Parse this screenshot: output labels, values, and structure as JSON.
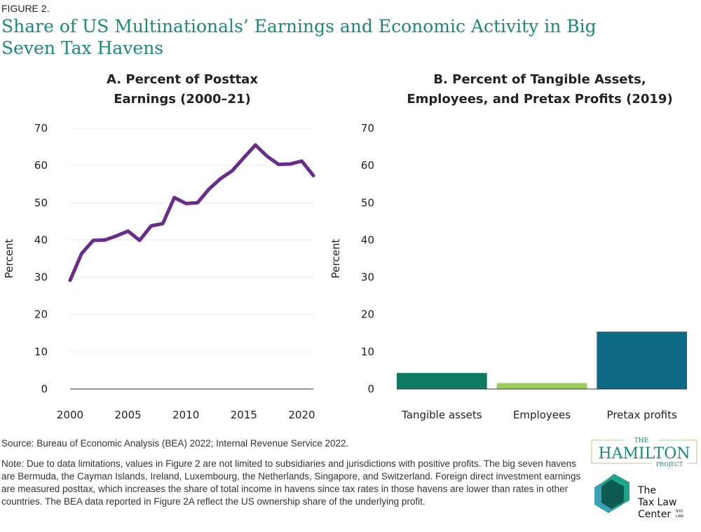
{
  "figure_label": "FIGURE 2.",
  "title": "Share of US Multinationals’ Earnings and Economic Activity in Big Seven Tax Havens",
  "source": "Source: Bureau of Economic Analysis (BEA) 2022; Internal Revenue Service 2022.",
  "note": "Note: Due to data limitations, values in Figure 2 are not limited to subsidiaries and jurisdictions with positive profits. The big seven havens are Bermuda, the Cayman Islands, Ireland, Luxembourg, the Netherlands, Singapore, and Switzerland. Foreign direct investment earnings are measured posttax, which increases the share of total income in havens since tax rates in those havens are lower than rates in other countries. The BEA data reported in Figure 2A reflect the US ownership share of the underlying profit.",
  "logos": {
    "hamilton": "THE HAMILTON PROJECT",
    "taxlaw": "The Tax Law Center NYU LAW"
  },
  "chart_data": [
    {
      "type": "line",
      "title": "A. Percent of Posttax Earnings (2000–21)",
      "ylabel": "Percent",
      "ylim": [
        0,
        70
      ],
      "yticks": [
        0,
        10,
        20,
        30,
        40,
        50,
        60,
        70
      ],
      "xticks": [
        2000,
        2005,
        2010,
        2015,
        2020
      ],
      "grid": true,
      "color": "#6a2c8a",
      "x": [
        2000,
        2001,
        2002,
        2003,
        2004,
        2005,
        2006,
        2007,
        2008,
        2009,
        2010,
        2011,
        2012,
        2013,
        2014,
        2015,
        2016,
        2017,
        2018,
        2019,
        2020,
        2021
      ],
      "values": [
        29.2,
        36.4,
        39.9,
        40.0,
        41.1,
        42.4,
        39.9,
        43.8,
        44.4,
        51.4,
        49.8,
        50.0,
        53.7,
        56.5,
        58.6,
        62.1,
        65.5,
        62.5,
        60.3,
        60.4,
        61.2,
        57.3
      ]
    },
    {
      "type": "bar",
      "title": "B. Percent of Tangible Assets, Employees, and Pretax Profits (2019)",
      "ylabel": "Percent",
      "ylim": [
        0,
        70
      ],
      "yticks": [
        0,
        10,
        20,
        30,
        40,
        50,
        60,
        70
      ],
      "grid": false,
      "categories": [
        "Tangible assets",
        "Employees",
        "Pretax profits"
      ],
      "values": [
        4.3,
        1.6,
        15.4
      ],
      "colors": [
        "#0e7a62",
        "#9acd5c",
        "#0f6a85"
      ]
    }
  ]
}
